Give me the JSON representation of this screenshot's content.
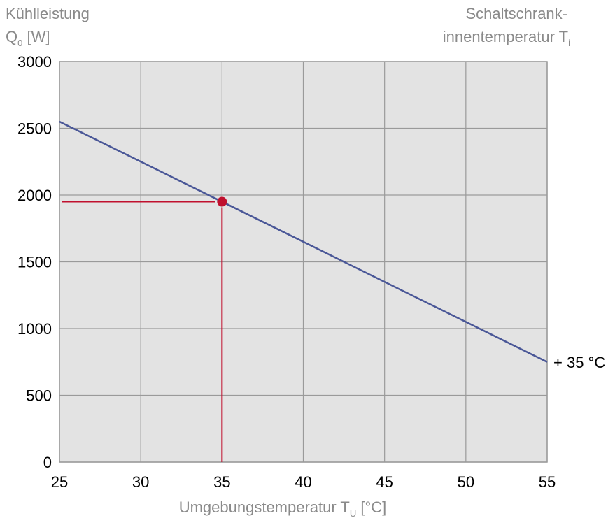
{
  "chart_data": {
    "type": "line",
    "ylabel_line1": "Kühlleistung",
    "ylabel_main": "Q",
    "ylabel_sub": "0",
    "ylabel_unit": " [W]",
    "right_title_line1": "Schaltschrank-",
    "right_title_main": "innentemperatur T",
    "right_title_sub": "i",
    "xlabel_main": "Umgebungstemperatur T",
    "xlabel_sub": "U",
    "xlabel_unit": " [°C]",
    "xlim": [
      25,
      55
    ],
    "ylim": [
      0,
      3000
    ],
    "x_ticks": [
      25,
      30,
      35,
      40,
      45,
      50,
      55
    ],
    "y_ticks": [
      0,
      500,
      1000,
      1500,
      2000,
      2500,
      3000
    ],
    "grid": true,
    "series": [
      {
        "name": "+ 35 °C",
        "color": "#4a5797",
        "x": [
          25,
          55
        ],
        "y": [
          2550,
          750
        ]
      }
    ],
    "marker": {
      "x": 35,
      "y": 1950,
      "color": "#c0102e"
    }
  }
}
